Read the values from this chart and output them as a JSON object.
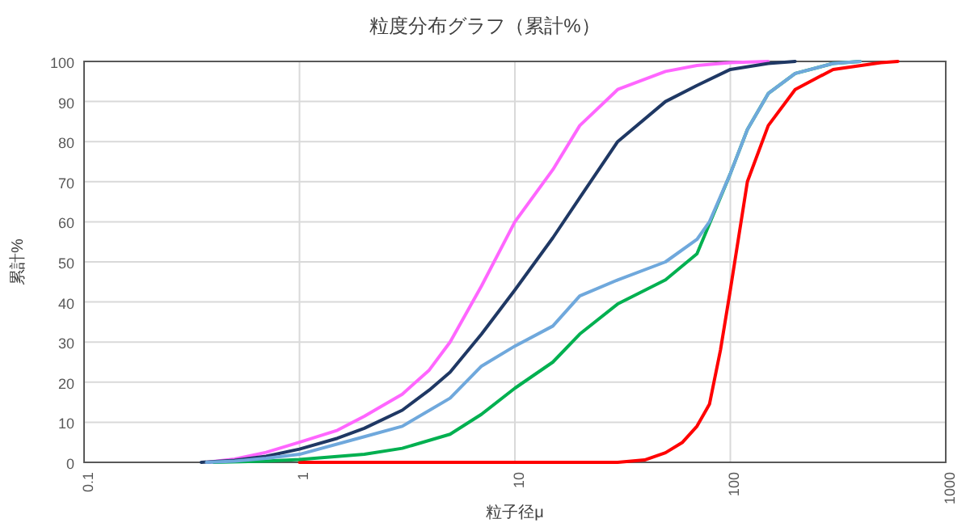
{
  "chart_data": {
    "type": "line",
    "title": "粒度分布グラフ（累計%）",
    "xlabel": "粒子径μ",
    "ylabel": "累計%",
    "log": "x",
    "xlim": [
      0.1,
      1000
    ],
    "xticks": [
      0.1,
      1,
      10,
      100,
      1000
    ],
    "ylim": [
      0,
      100
    ],
    "yticks": [
      0,
      10,
      20,
      30,
      40,
      50,
      60,
      70,
      80,
      90,
      100
    ],
    "grid": true,
    "series": [
      {
        "color": "#ff0000",
        "x": [
          1,
          10,
          30,
          40,
          50,
          60,
          70,
          80,
          90,
          100,
          120,
          150,
          200,
          300,
          500,
          600
        ],
        "values": [
          0,
          0,
          0,
          0.6,
          2.4,
          5,
          9,
          14.5,
          28,
          43,
          70,
          84,
          93,
          98,
          99.7,
          100
        ]
      },
      {
        "color": "#ff66ff",
        "x": [
          0.37,
          0.5,
          0.7,
          1,
          1.5,
          2,
          3,
          4,
          5,
          7,
          10,
          15,
          20,
          30,
          50,
          70,
          100,
          150
        ],
        "values": [
          0,
          0.8,
          2.5,
          5,
          8,
          11.5,
          17,
          23,
          30,
          44,
          60,
          73,
          84,
          93,
          97.5,
          99,
          99.7,
          100
        ]
      },
      {
        "color": "#1f3864",
        "x": [
          0.35,
          0.5,
          0.7,
          1,
          1.5,
          2,
          3,
          4,
          5,
          7,
          10,
          15,
          20,
          30,
          50,
          70,
          100,
          150,
          200
        ],
        "values": [
          0,
          0.5,
          1.5,
          3.3,
          6,
          8.5,
          13,
          18,
          22.5,
          32,
          43,
          56,
          66,
          80,
          90,
          94,
          98,
          99.5,
          100
        ]
      },
      {
        "color": "#00b050",
        "x": [
          0.4,
          0.7,
          1,
          2,
          3,
          5,
          7,
          10,
          15,
          20,
          30,
          50,
          70,
          100,
          120,
          150,
          200,
          300,
          400
        ],
        "values": [
          0,
          0.3,
          0.7,
          2,
          3.5,
          7,
          12,
          18.5,
          25,
          32,
          39.5,
          45.5,
          52,
          72,
          83,
          92,
          97,
          99.5,
          100
        ]
      },
      {
        "color": "#6fa8dc",
        "x": [
          0.37,
          0.5,
          0.7,
          1,
          2,
          3,
          5,
          7,
          10,
          15,
          20,
          30,
          50,
          70,
          80,
          100,
          120,
          150,
          200,
          300,
          400
        ],
        "values": [
          0,
          0.3,
          1,
          2,
          6.4,
          9,
          16,
          24,
          29,
          34,
          41.5,
          45.5,
          50,
          55.6,
          60,
          72,
          83,
          92,
          97,
          99.5,
          100
        ]
      }
    ]
  }
}
